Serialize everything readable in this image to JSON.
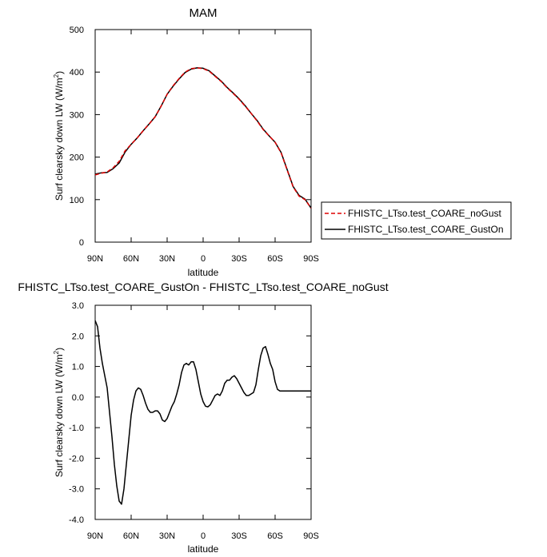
{
  "chart_data": [
    {
      "type": "line",
      "title": "MAM",
      "xlabel": "latitude",
      "ylabel": "Surf clearsky down LW (W/m²)",
      "ylabel_main": "Surf clearsky down LW (W/m",
      "ylabel_sup": "2",
      "ylabel_close": ")",
      "xlim": [
        90,
        -90
      ],
      "ylim": [
        0,
        500
      ],
      "x_ticks": [
        90,
        60,
        30,
        0,
        -30,
        -60,
        -90
      ],
      "x_tick_labels": [
        "90N",
        "60N",
        "30N",
        "0",
        "30S",
        "60S",
        "90S"
      ],
      "y_ticks": [
        0,
        100,
        200,
        300,
        400,
        500
      ],
      "y_tick_labels": [
        "0",
        "100",
        "200",
        "300",
        "400",
        "500"
      ],
      "grid": false,
      "legend_position": "right",
      "series": [
        {
          "name": "FHISTC_LTso.test_COARE_noGust",
          "color": "#dd0000",
          "dash": "dashed",
          "x": [
            90,
            85,
            80,
            75,
            70,
            65,
            60,
            55,
            50,
            45,
            40,
            35,
            30,
            25,
            20,
            15,
            10,
            5,
            0,
            -5,
            -10,
            -15,
            -20,
            -25,
            -30,
            -35,
            -40,
            -45,
            -50,
            -55,
            -60,
            -65,
            -70,
            -75,
            -80,
            -85,
            -90
          ],
          "y": [
            158,
            162,
            165,
            175,
            190,
            215,
            230,
            245,
            262,
            278,
            295,
            320,
            348,
            368,
            385,
            400,
            408,
            410,
            408,
            402,
            390,
            378,
            363,
            350,
            336,
            320,
            303,
            285,
            265,
            250,
            235,
            210,
            170,
            130,
            108,
            100,
            80
          ]
        },
        {
          "name": "FHISTC_LTso.test_COARE_GustOn",
          "color": "#000000",
          "dash": "solid",
          "x": [
            90,
            85,
            80,
            75,
            70,
            65,
            60,
            55,
            50,
            45,
            40,
            35,
            30,
            25,
            20,
            15,
            10,
            5,
            0,
            -5,
            -10,
            -15,
            -20,
            -25,
            -30,
            -35,
            -40,
            -45,
            -50,
            -55,
            -60,
            -65,
            -70,
            -75,
            -80,
            -85,
            -90
          ],
          "y": [
            160,
            163,
            164,
            173,
            186,
            212,
            230,
            245,
            262,
            278,
            295,
            320,
            348,
            367,
            384,
            399,
            407,
            410,
            409,
            403,
            391,
            379,
            364,
            351,
            337,
            321,
            303,
            286,
            266,
            250,
            235,
            211,
            171,
            131,
            110,
            101,
            80
          ]
        }
      ]
    },
    {
      "type": "line",
      "title": "FHISTC_LTso.test_COARE_GustOn - FHISTC_LTso.test_COARE_noGust",
      "xlabel": "latitude",
      "ylabel": "Surf clearsky down LW (W/m²)",
      "ylabel_main": "Surf clearsky down LW (W/m",
      "ylabel_sup": "2",
      "ylabel_close": ")",
      "xlim": [
        90,
        -90
      ],
      "ylim": [
        -4.0,
        3.0
      ],
      "x_ticks": [
        90,
        60,
        30,
        0,
        -30,
        -60,
        -90
      ],
      "x_tick_labels": [
        "90N",
        "60N",
        "30N",
        "0",
        "30S",
        "60S",
        "90S"
      ],
      "y_ticks": [
        3.0,
        2.0,
        1.0,
        0.0,
        -1.0,
        -2.0,
        -3.0,
        -4.0
      ],
      "y_tick_labels": [
        "3.0",
        "2.0",
        "1.0",
        "0.0",
        "-1.0",
        "-2.0",
        "-3.0",
        "-4.0"
      ],
      "grid": false,
      "series": [
        {
          "color": "#000000",
          "dash": "solid",
          "x": [
            90,
            88,
            86,
            84,
            82,
            80,
            78,
            76,
            74,
            72,
            70,
            68,
            66,
            64,
            62,
            60,
            58,
            56,
            54,
            52,
            50,
            48,
            46,
            44,
            42,
            40,
            38,
            36,
            34,
            32,
            30,
            28,
            26,
            24,
            22,
            20,
            18,
            16,
            14,
            12,
            10,
            8,
            6,
            4,
            2,
            0,
            -2,
            -4,
            -6,
            -8,
            -10,
            -12,
            -14,
            -16,
            -18,
            -20,
            -22,
            -24,
            -26,
            -28,
            -30,
            -32,
            -34,
            -36,
            -38,
            -40,
            -42,
            -44,
            -46,
            -48,
            -50,
            -52,
            -54,
            -56,
            -58,
            -60,
            -62,
            -64,
            -66,
            -68,
            -70,
            -72,
            -74,
            -76,
            -78,
            -80,
            -82,
            -84,
            -86,
            -88,
            -90
          ],
          "y": [
            2.5,
            2.3,
            1.6,
            1.1,
            0.7,
            0.3,
            -0.5,
            -1.3,
            -2.2,
            -2.9,
            -3.4,
            -3.5,
            -3.0,
            -2.2,
            -1.4,
            -0.6,
            -0.1,
            0.2,
            0.3,
            0.25,
            0.05,
            -0.2,
            -0.4,
            -0.5,
            -0.5,
            -0.45,
            -0.45,
            -0.55,
            -0.75,
            -0.8,
            -0.7,
            -0.5,
            -0.3,
            -0.15,
            0.1,
            0.4,
            0.8,
            1.05,
            1.1,
            1.05,
            1.15,
            1.15,
            0.9,
            0.5,
            0.1,
            -0.15,
            -0.3,
            -0.32,
            -0.25,
            -0.1,
            0.05,
            0.1,
            0.05,
            0.2,
            0.45,
            0.55,
            0.55,
            0.65,
            0.7,
            0.6,
            0.45,
            0.3,
            0.15,
            0.05,
            0.05,
            0.1,
            0.15,
            0.4,
            0.9,
            1.35,
            1.6,
            1.65,
            1.4,
            1.1,
            0.9,
            0.5,
            0.25,
            0.2,
            0.2,
            0.2,
            0.2,
            0.2,
            0.2,
            0.2,
            0.2,
            0.2,
            0.2,
            0.2,
            0.2,
            0.2,
            0.2
          ]
        }
      ]
    }
  ]
}
